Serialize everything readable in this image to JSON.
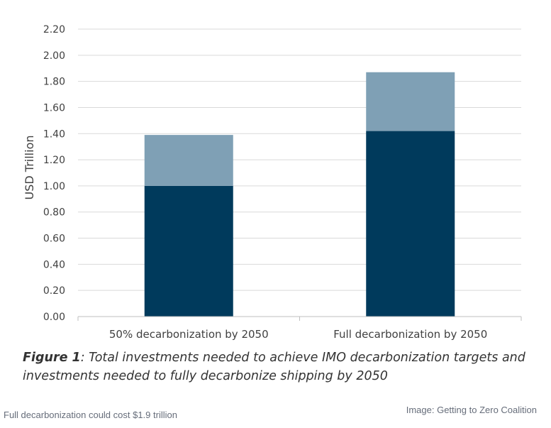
{
  "chart_data": {
    "type": "bar",
    "stacked": true,
    "categories": [
      "50% decarbonization by 2050",
      "Full decarbonization by 2050"
    ],
    "series": [
      {
        "values": [
          1.0,
          1.42
        ],
        "color": "#003a5c"
      },
      {
        "values": [
          0.39,
          0.45
        ],
        "color": "#7fa0b5"
      }
    ],
    "ylabel": "USD Trillion",
    "ylim": [
      0,
      2.2
    ],
    "yticks": [
      "0.00",
      "0.20",
      "0.40",
      "0.60",
      "0.80",
      "1.00",
      "1.20",
      "1.40",
      "1.60",
      "1.80",
      "2.00",
      "2.20"
    ],
    "grid": true,
    "legend": "none"
  },
  "figure": {
    "label": "Figure 1",
    "caption": ": Total investments needed to achieve IMO decarbonization targets and investments needed to fully decarbonize shipping by 2050"
  },
  "footer": {
    "caption": "Full decarbonization could cost $1.9 trillion",
    "credit": "Image: Getting to Zero Coalition"
  }
}
